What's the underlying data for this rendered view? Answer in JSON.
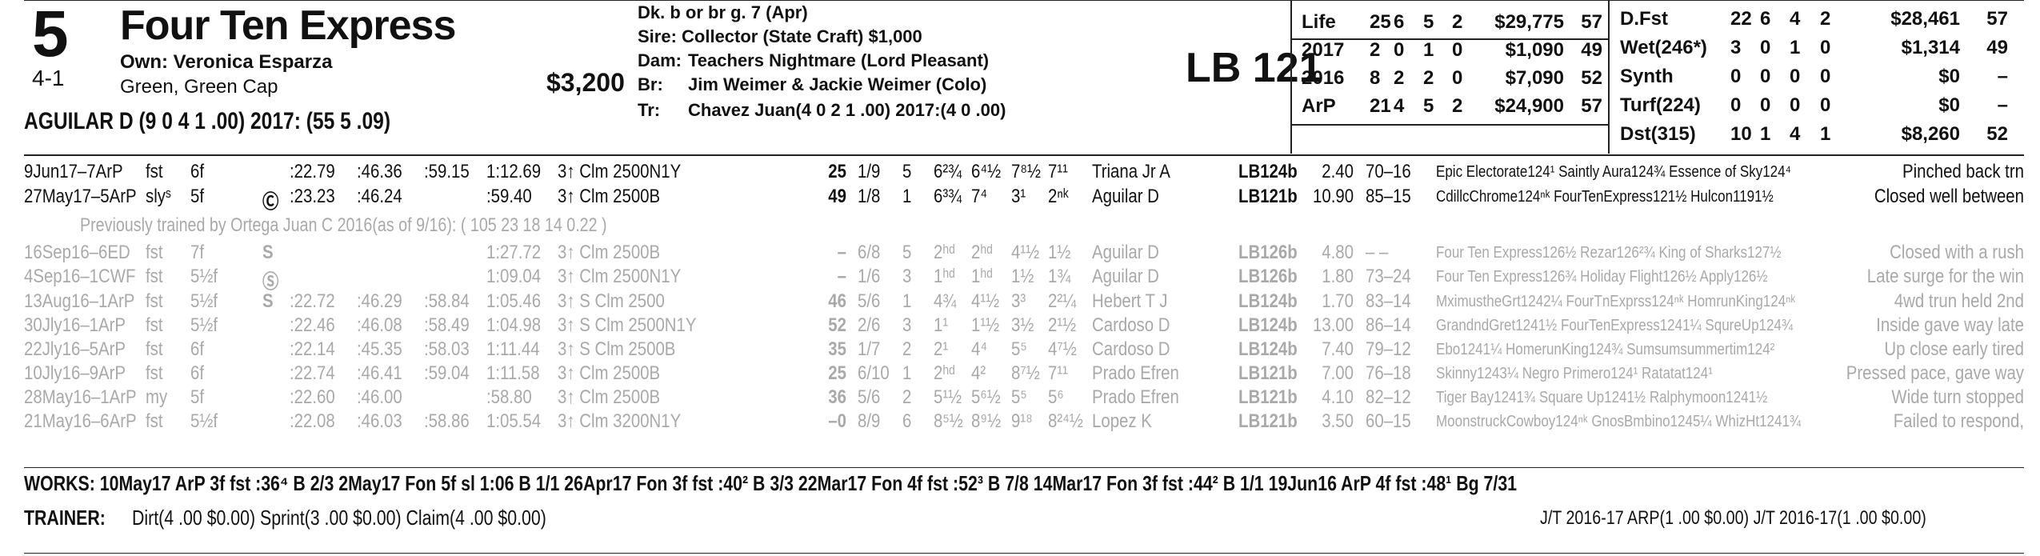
{
  "entry": {
    "program_number": "5",
    "odds": "4-1",
    "horse_name": "Four Ten Express",
    "owner": "Own: Veronica Esparza",
    "silks": "Green, Green Cap",
    "claim_price": "$3,200",
    "jockey_line": "AGUILAR D (9 0 4 1 .00) 2017: (55 5 .09)"
  },
  "pedigree": {
    "desc": "Dk. b or br g. 7 (Apr)",
    "sire": "Sire: Collector (State Craft) $1,000",
    "dam_label": "Dam:",
    "dam": "Teachers Nightmare (Lord Pleasant)",
    "br_label": "Br:",
    "breeder": "Jim Weimer & Jackie Weimer (Colo)",
    "tr_label": "Tr:",
    "trainer": "Chavez Juan(4 0 2 1 .00) 2017:(4 0 .00)"
  },
  "weight_label": "LB 121",
  "record_left": [
    {
      "label": "Life",
      "sts": "25",
      "w": "6",
      "p": "5",
      "s": "2",
      "earn": "$29,775",
      "spd": "57"
    },
    {
      "label": "2017",
      "sts": "2",
      "w": "0",
      "p": "1",
      "s": "0",
      "earn": "$1,090",
      "spd": "49"
    },
    {
      "label": "2016",
      "sts": "8",
      "w": "2",
      "p": "2",
      "s": "0",
      "earn": "$7,090",
      "spd": "52"
    },
    {
      "label": "ArP",
      "sts": "21",
      "w": "4",
      "p": "5",
      "s": "2",
      "earn": "$24,900",
      "spd": "57"
    }
  ],
  "record_right": [
    {
      "label": "D.Fst",
      "sts": "22",
      "w": "6",
      "p": "4",
      "s": "2",
      "earn": "$28,461",
      "spd": "57"
    },
    {
      "label": "Wet(246*)",
      "sts": "3",
      "w": "0",
      "p": "1",
      "s": "0",
      "earn": "$1,314",
      "spd": "49"
    },
    {
      "label": "Synth",
      "sts": "0",
      "w": "0",
      "p": "0",
      "s": "0",
      "earn": "$0",
      "spd": "–"
    },
    {
      "label": "Turf(224)",
      "sts": "0",
      "w": "0",
      "p": "0",
      "s": "0",
      "earn": "$0",
      "spd": "–"
    },
    {
      "label": "Dst(315)",
      "sts": "10",
      "w": "1",
      "p": "4",
      "s": "1",
      "earn": "$8,260",
      "spd": "52"
    }
  ],
  "trained_note": "Previously trained by Ortega Juan C 2016(as of 9/16): ( 105 23 18 14 0.22 )",
  "past_performances": [
    {
      "date": "9Jun17–7ArP",
      "cond": "fst",
      "dist": "6f",
      "sym": "",
      "f1": ":22.79",
      "f2": ":46.36",
      "f3": ":59.15",
      "fin": "1:12.69",
      "race": "3↑ Clm 2500N1Y",
      "spd": "25",
      "pp": "1/9",
      "st": "5",
      "c1": "6²¾",
      "c2": "6⁴½",
      "str": "7⁸½",
      "fn": "7¹¹",
      "jockey": "Triana Jr A",
      "wt": "LB124b",
      "odds": "2.40",
      "pace": "70–16",
      "comp": "Epic Electorate124¹ Saintly Aura124¾ Essence of Sky124⁴",
      "comment": "Pinched back trn"
    },
    {
      "date": "27May17–5ArP",
      "cond": "slyˢ",
      "dist": "5f",
      "sym": "Ⓒ",
      "f1": ":23.23",
      "f2": ":46.24",
      "f3": "",
      "fin": ":59.40",
      "race": "3↑ Clm 2500B",
      "spd": "49",
      "pp": "1/8",
      "st": "1",
      "c1": "6³¾",
      "c2": "7⁴",
      "str": "3¹",
      "fn": "2ⁿᵏ",
      "jockey": "Aguilar D",
      "wt": "LB121b",
      "odds": "10.90",
      "pace": "85–15",
      "comp": "CdillcChrome124ⁿᵏ FourTenExpress121½ Hulcon1191½",
      "comment": "Closed well between"
    },
    {
      "date": "16Sep16–6ED",
      "cond": "fst",
      "dist": "7f",
      "sym": "S",
      "f1": "",
      "f2": "",
      "f3": "",
      "fin": "1:27.72",
      "race": "3↑ Clm 2500B",
      "spd": "–",
      "pp": "6/8",
      "st": "5",
      "c1": "2ʰᵈ",
      "c2": "2ʰᵈ",
      "str": "4¹½",
      "fn": "1½",
      "jockey": "Aguilar D",
      "wt": "LB126b",
      "odds": "4.80",
      "pace": "– –",
      "comp": "Four Ten Express126½ Rezar126²¾ King of Sharks127½",
      "comment": "Closed with a rush"
    },
    {
      "date": "4Sep16–1CWF",
      "cond": "fst",
      "dist": "5½f",
      "sym": "Ⓢ",
      "f1": "",
      "f2": "",
      "f3": "",
      "fin": "1:09.04",
      "race": "3↑ Clm 2500N1Y",
      "spd": "–",
      "pp": "1/6",
      "st": "3",
      "c1": "1ʰᵈ",
      "c2": "1ʰᵈ",
      "str": "1½",
      "fn": "1¾",
      "jockey": "Aguilar D",
      "wt": "LB126b",
      "odds": "1.80",
      "pace": "73–24",
      "comp": "Four Ten Express126¾ Holiday Flight126½ Apply126½",
      "comment": "Late surge for the win"
    },
    {
      "date": "13Aug16–1ArP",
      "cond": "fst",
      "dist": "5½f",
      "sym": "S",
      "f1": ":22.72",
      "f2": ":46.29",
      "f3": ":58.84",
      "fin": "1:05.46",
      "race": "3↑ S Clm 2500",
      "spd": "46",
      "pp": "5/6",
      "st": "1",
      "c1": "4¾",
      "c2": "4¹½",
      "str": "3³",
      "fn": "2²¼",
      "jockey": "Hebert T J",
      "wt": "LB124b",
      "odds": "1.70",
      "pace": "83–14",
      "comp": "MximustheGrt1242¼ FourTnExprss124ⁿᵏ HomrunKing124ⁿᵏ",
      "comment": "4wd trun held 2nd"
    },
    {
      "date": "30Jly16–1ArP",
      "cond": "fst",
      "dist": "5½f",
      "sym": "",
      "f1": ":22.46",
      "f2": ":46.08",
      "f3": ":58.49",
      "fin": "1:04.98",
      "race": "3↑ S Clm 2500N1Y",
      "spd": "52",
      "pp": "2/6",
      "st": "3",
      "c1": "1¹",
      "c2": "1¹½",
      "str": "3½",
      "fn": "2¹½",
      "jockey": "Cardoso D",
      "wt": "LB124b",
      "odds": "13.00",
      "pace": "86–14",
      "comp": "GrandndGret1241½ FourTenExpress1241¼ SqureUp124¾",
      "comment": "Inside gave way late"
    },
    {
      "date": "22Jly16–5ArP",
      "cond": "fst",
      "dist": "6f",
      "sym": "",
      "f1": ":22.14",
      "f2": ":45.35",
      "f3": ":58.03",
      "fin": "1:11.44",
      "race": "3↑ S Clm 2500B",
      "spd": "35",
      "pp": "1/7",
      "st": "2",
      "c1": "2¹",
      "c2": "4⁴",
      "str": "5⁵",
      "fn": "4⁷½",
      "jockey": "Cardoso D",
      "wt": "LB124b",
      "odds": "7.40",
      "pace": "79–12",
      "comp": "Ebo1241¼ HomerunKing124¾ Sumsumsummertim124²",
      "comment": "Up close early tired"
    },
    {
      "date": "10Jly16–9ArP",
      "cond": "fst",
      "dist": "6f",
      "sym": "",
      "f1": ":22.74",
      "f2": ":46.41",
      "f3": ":59.04",
      "fin": "1:11.58",
      "race": "3↑ Clm 2500B",
      "spd": "25",
      "pp": "6/10",
      "st": "1",
      "c1": "2ʰᵈ",
      "c2": "4²",
      "str": "8⁷½",
      "fn": "7¹¹",
      "jockey": "Prado Efren",
      "wt": "LB121b",
      "odds": "7.00",
      "pace": "76–18",
      "comp": "Skinny1243¼ Negro Primero124¹ Ratatat124¹",
      "comment": "Pressed pace, gave way"
    },
    {
      "date": "28May16–1ArP",
      "cond": "my",
      "dist": "5f",
      "sym": "",
      "f1": ":22.60",
      "f2": ":46.00",
      "f3": "",
      "fin": ":58.80",
      "race": "3↑ Clm 2500B",
      "spd": "36",
      "pp": "5/6",
      "st": "2",
      "c1": "5¹½",
      "c2": "5⁶½",
      "str": "5⁵",
      "fn": "5⁶",
      "jockey": "Prado Efren",
      "wt": "LB121b",
      "odds": "4.10",
      "pace": "82–12",
      "comp": "Tiger Bay1241¾ Square Up1241½ Ralphymoon1241½",
      "comment": "Wide turn stopped"
    },
    {
      "date": "21May16–6ArP",
      "cond": "fst",
      "dist": "5½f",
      "sym": "",
      "f1": ":22.08",
      "f2": ":46.03",
      "f3": ":58.86",
      "fin": "1:05.54",
      "race": "3↑ Clm 3200N1Y",
      "spd": "–0",
      "pp": "8/9",
      "st": "6",
      "c1": "8⁵½",
      "c2": "8⁹½",
      "str": "9¹⁸",
      "fn": "8²⁴½",
      "jockey": "Lopez K",
      "wt": "LB121b",
      "odds": "3.50",
      "pace": "60–15",
      "comp": "MoonstruckCowboy124ⁿᵏ GnosBmbino1245¼ WhizHt1241¾",
      "comment": "Failed to respond,"
    }
  ],
  "works": "WORKS:   10May17 ArP 3f fst :36⁴ B 2/3   2May17 Fon 5f sl 1:06 B 1/1   26Apr17 Fon 3f fst :40² B 3/3   22Mar17 Fon 4f fst :52³ B 7/8   14Mar17 Fon 3f fst :44² B 1/1   19Jun16 ArP 4f fst :48¹ Bg 7/31",
  "trainer_stats": {
    "label": "TRAINER:",
    "text": "Dirt(4 .00 $0.00) Sprint(3 .00 $0.00) Claim(4 .00 $0.00)",
    "jt": "J/T 2016-17 ARP(1 .00 $0.00) J/T 2016-17(1 .00 $0.00)"
  }
}
